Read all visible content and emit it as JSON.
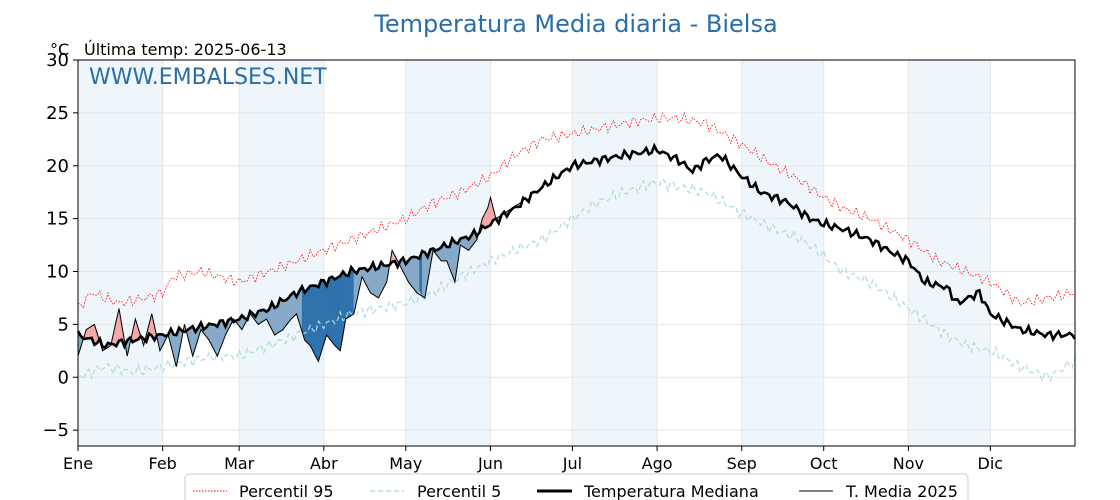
{
  "chart_data": {
    "type": "line",
    "title": "Temperatura Media diaria - Bielsa",
    "unit_label": "°C",
    "last_temp_label": "Última temp: 2025-06-13",
    "watermark": "WWW.EMBALSES.NET",
    "ylim": [
      -6.5,
      30
    ],
    "yticks": [
      -5,
      0,
      5,
      10,
      15,
      20,
      25,
      30
    ],
    "xlim": [
      0,
      365
    ],
    "months": [
      "Ene",
      "Feb",
      "Mar",
      "Abr",
      "May",
      "Jun",
      "Jul",
      "Ago",
      "Sep",
      "Oct",
      "Nov",
      "Dic"
    ],
    "month_starts": [
      0,
      31,
      59,
      90,
      120,
      151,
      181,
      212,
      243,
      273,
      304,
      334
    ],
    "grid": true,
    "legend_position": "bottom",
    "colors": {
      "p95": "#ff0000",
      "p5": "#add8e6",
      "median": "#000000",
      "current": "#000000",
      "above_fill": "#f4a8a8",
      "above_fill_strong": "#e8606a",
      "below_fill": "#86a9c9",
      "below_fill_strong": "#2e72ad",
      "band": "#eef5fb",
      "title": "#2a6ea8"
    },
    "series": [
      {
        "name": "Percentil 95",
        "style": "dotted",
        "keypoints": [
          [
            0,
            6.5
          ],
          [
            5,
            8
          ],
          [
            15,
            7
          ],
          [
            25,
            7.5
          ],
          [
            31,
            8
          ],
          [
            35,
            9.5
          ],
          [
            45,
            10
          ],
          [
            59,
            9
          ],
          [
            70,
            10
          ],
          [
            80,
            11
          ],
          [
            90,
            12
          ],
          [
            100,
            13
          ],
          [
            110,
            14
          ],
          [
            120,
            15
          ],
          [
            130,
            16.5
          ],
          [
            140,
            17.5
          ],
          [
            151,
            19
          ],
          [
            160,
            21
          ],
          [
            170,
            22.5
          ],
          [
            181,
            23
          ],
          [
            190,
            23.5
          ],
          [
            200,
            24
          ],
          [
            212,
            24.5
          ],
          [
            220,
            24.5
          ],
          [
            230,
            24
          ],
          [
            243,
            22
          ],
          [
            255,
            20
          ],
          [
            265,
            18.5
          ],
          [
            273,
            17
          ],
          [
            280,
            16
          ],
          [
            290,
            15
          ],
          [
            304,
            13
          ],
          [
            315,
            11
          ],
          [
            325,
            10
          ],
          [
            334,
            9
          ],
          [
            345,
            7
          ],
          [
            355,
            7.5
          ],
          [
            365,
            8
          ]
        ]
      },
      {
        "name": "Percentil 5",
        "style": "dashed",
        "keypoints": [
          [
            0,
            0
          ],
          [
            10,
            1
          ],
          [
            20,
            0.5
          ],
          [
            31,
            1
          ],
          [
            40,
            1.5
          ],
          [
            50,
            2
          ],
          [
            59,
            2
          ],
          [
            70,
            3
          ],
          [
            80,
            4
          ],
          [
            90,
            5
          ],
          [
            100,
            6
          ],
          [
            110,
            6.5
          ],
          [
            120,
            7
          ],
          [
            130,
            8
          ],
          [
            140,
            9.5
          ],
          [
            151,
            11
          ],
          [
            160,
            12
          ],
          [
            170,
            13
          ],
          [
            181,
            15
          ],
          [
            190,
            16.5
          ],
          [
            200,
            17.5
          ],
          [
            212,
            18.5
          ],
          [
            220,
            18
          ],
          [
            230,
            17.5
          ],
          [
            243,
            15.5
          ],
          [
            255,
            14
          ],
          [
            265,
            13
          ],
          [
            273,
            11.5
          ],
          [
            280,
            10
          ],
          [
            290,
            9
          ],
          [
            304,
            6.5
          ],
          [
            315,
            4.5
          ],
          [
            325,
            3
          ],
          [
            334,
            2.5
          ],
          [
            345,
            1
          ],
          [
            355,
            0
          ],
          [
            365,
            1.5
          ]
        ]
      },
      {
        "name": "Temperatura Mediana",
        "style": "thick",
        "keypoints": [
          [
            0,
            4
          ],
          [
            5,
            3.5
          ],
          [
            10,
            3
          ],
          [
            20,
            3.5
          ],
          [
            31,
            4
          ],
          [
            40,
            4.5
          ],
          [
            50,
            5
          ],
          [
            59,
            5.5
          ],
          [
            70,
            6.5
          ],
          [
            80,
            8
          ],
          [
            90,
            9
          ],
          [
            100,
            10
          ],
          [
            110,
            10.5
          ],
          [
            120,
            11
          ],
          [
            130,
            12
          ],
          [
            140,
            13
          ],
          [
            145,
            13.5
          ],
          [
            151,
            14.5
          ],
          [
            160,
            16
          ],
          [
            170,
            18
          ],
          [
            181,
            20
          ],
          [
            190,
            20.5
          ],
          [
            200,
            21
          ],
          [
            212,
            21.5
          ],
          [
            220,
            20.5
          ],
          [
            225,
            19.5
          ],
          [
            230,
            20.5
          ],
          [
            235,
            21
          ],
          [
            243,
            19
          ],
          [
            250,
            17.5
          ],
          [
            260,
            16.5
          ],
          [
            268,
            15
          ],
          [
            273,
            14.5
          ],
          [
            280,
            14
          ],
          [
            290,
            13
          ],
          [
            300,
            11.5
          ],
          [
            304,
            11
          ],
          [
            310,
            9
          ],
          [
            318,
            8.5
          ],
          [
            322,
            7
          ],
          [
            330,
            8
          ],
          [
            334,
            6
          ],
          [
            345,
            4.5
          ],
          [
            355,
            4
          ],
          [
            365,
            4
          ]
        ]
      },
      {
        "name": "T. Media 2025",
        "style": "thin",
        "keypoints": [
          [
            0,
            2
          ],
          [
            3,
            4.5
          ],
          [
            6,
            5
          ],
          [
            9,
            2.5
          ],
          [
            12,
            3
          ],
          [
            15,
            6.5
          ],
          [
            18,
            2
          ],
          [
            21,
            5.5
          ],
          [
            24,
            3
          ],
          [
            27,
            6
          ],
          [
            30,
            2.5
          ],
          [
            33,
            4
          ],
          [
            36,
            1
          ],
          [
            39,
            5
          ],
          [
            42,
            2
          ],
          [
            45,
            4.5
          ],
          [
            48,
            3.5
          ],
          [
            51,
            2
          ],
          [
            54,
            4
          ],
          [
            57,
            5.5
          ],
          [
            60,
            4.5
          ],
          [
            63,
            6
          ],
          [
            66,
            5
          ],
          [
            69,
            5.5
          ],
          [
            72,
            4
          ],
          [
            75,
            4.5
          ],
          [
            78,
            5.5
          ],
          [
            80,
            6
          ],
          [
            83,
            3.5
          ],
          [
            85,
            3
          ],
          [
            88,
            1.5
          ],
          [
            91,
            4
          ],
          [
            94,
            3
          ],
          [
            96,
            2.5
          ],
          [
            98,
            5.5
          ],
          [
            101,
            6
          ],
          [
            104,
            9.5
          ],
          [
            107,
            8
          ],
          [
            110,
            7.5
          ],
          [
            113,
            9
          ],
          [
            115,
            12
          ],
          [
            118,
            10.5
          ],
          [
            121,
            9
          ],
          [
            124,
            8
          ],
          [
            127,
            7.5
          ],
          [
            130,
            12
          ],
          [
            133,
            11
          ],
          [
            135,
            11
          ],
          [
            138,
            9
          ],
          [
            140,
            12.5
          ],
          [
            143,
            12
          ],
          [
            146,
            13
          ],
          [
            148,
            15
          ],
          [
            150,
            16
          ],
          [
            151,
            17
          ],
          [
            153,
            15
          ],
          [
            156,
            15.5
          ],
          [
            159,
            16
          ],
          [
            162,
            16.5
          ],
          [
            164,
            17
          ]
        ]
      }
    ]
  }
}
